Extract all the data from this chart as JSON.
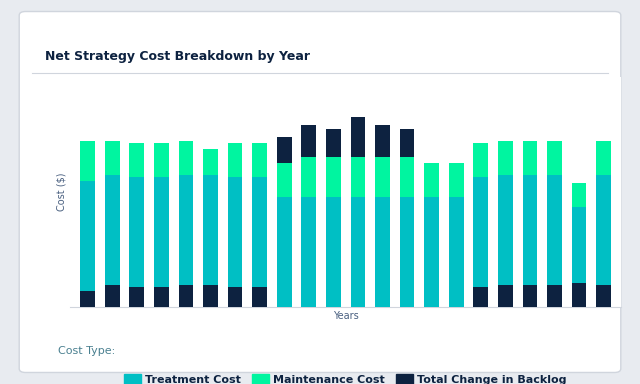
{
  "title": "Net Strategy Cost Breakdown by Year",
  "xlabel": "Years",
  "ylabel": "Cost ($)",
  "colors": {
    "treatment": "#00BFC4",
    "maintenance": "#00F5A0",
    "backlog": "#0D2240",
    "card_bg": "#FFFFFF",
    "outer_bg": "#E8EBF0",
    "grid": "#DCDCE8",
    "title_color": "#0D2240",
    "axis_label_color": "#4A6080",
    "legend_title_color": "#4A8090"
  },
  "n_bars": 22,
  "treatment": [
    55,
    55,
    55,
    55,
    55,
    55,
    55,
    55,
    55,
    55,
    55,
    55,
    55,
    55,
    55,
    55,
    55,
    55,
    55,
    55,
    38,
    55
  ],
  "maintenance": [
    20,
    17,
    17,
    17,
    17,
    13,
    17,
    17,
    17,
    20,
    20,
    20,
    20,
    20,
    17,
    17,
    17,
    17,
    17,
    17,
    12,
    17
  ],
  "backlog_bot": [
    8,
    11,
    10,
    10,
    11,
    11,
    10,
    10,
    0,
    0,
    0,
    0,
    0,
    0,
    0,
    0,
    10,
    11,
    11,
    11,
    12,
    11
  ],
  "backlog_top": [
    0,
    0,
    0,
    0,
    0,
    0,
    0,
    0,
    13,
    16,
    14,
    20,
    16,
    14,
    0,
    0,
    0,
    0,
    0,
    0,
    0,
    0
  ],
  "bar_width": 0.6,
  "ylim": [
    0,
    115
  ],
  "title_fontsize": 9,
  "label_fontsize": 7,
  "legend_fontsize": 8
}
